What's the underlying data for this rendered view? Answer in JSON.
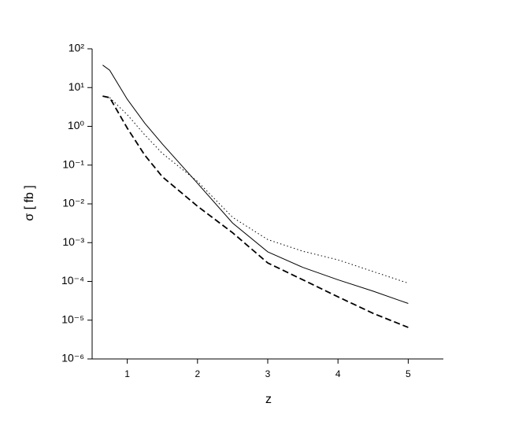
{
  "chart_data": {
    "type": "line",
    "xlabel": "z",
    "ylabel": "σ [ fb ]",
    "x": [
      0.65,
      0.75,
      1,
      1.25,
      1.5,
      2,
      2.5,
      3,
      3.5,
      4,
      4.5,
      5
    ],
    "series": [
      {
        "color": "#000000",
        "dash": "solid",
        "values": [
          38,
          28,
          5,
          1.2,
          0.35,
          0.034,
          0.0032,
          0.00058,
          0.00023,
          0.00011,
          5.6e-05,
          2.7e-05
        ]
      },
      {
        "color": "#000000",
        "dash": "dotted",
        "values": [
          6,
          5.5,
          2,
          0.6,
          0.2,
          0.038,
          0.0045,
          0.0012,
          0.0006,
          0.00036,
          0.00018,
          9e-05
        ]
      },
      {
        "color": "#000000",
        "dash": "dashed",
        "values": [
          6,
          5.5,
          0.9,
          0.18,
          0.05,
          0.0087,
          0.0018,
          0.0003,
          0.00011,
          4e-05,
          1.5e-05,
          6.5e-06
        ]
      }
    ],
    "xlim": [
      0.5,
      5.5
    ],
    "xticks": [
      1,
      2,
      3,
      4,
      5
    ],
    "ylog": true,
    "ylim": [
      1e-06,
      100
    ],
    "yticks": [
      {
        "value": 1e-06,
        "label": "10⁻⁶"
      },
      {
        "value": 1e-05,
        "label": "10⁻⁵"
      },
      {
        "value": 0.0001,
        "label": "10⁻⁴"
      },
      {
        "value": 0.001,
        "label": "10⁻³"
      },
      {
        "value": 0.01,
        "label": "10⁻²"
      },
      {
        "value": 0.1,
        "label": "10⁻¹"
      },
      {
        "value": 1,
        "label": "10⁰"
      },
      {
        "value": 10,
        "label": "10¹"
      },
      {
        "value": 100,
        "label": "10²"
      }
    ],
    "grid": false
  }
}
